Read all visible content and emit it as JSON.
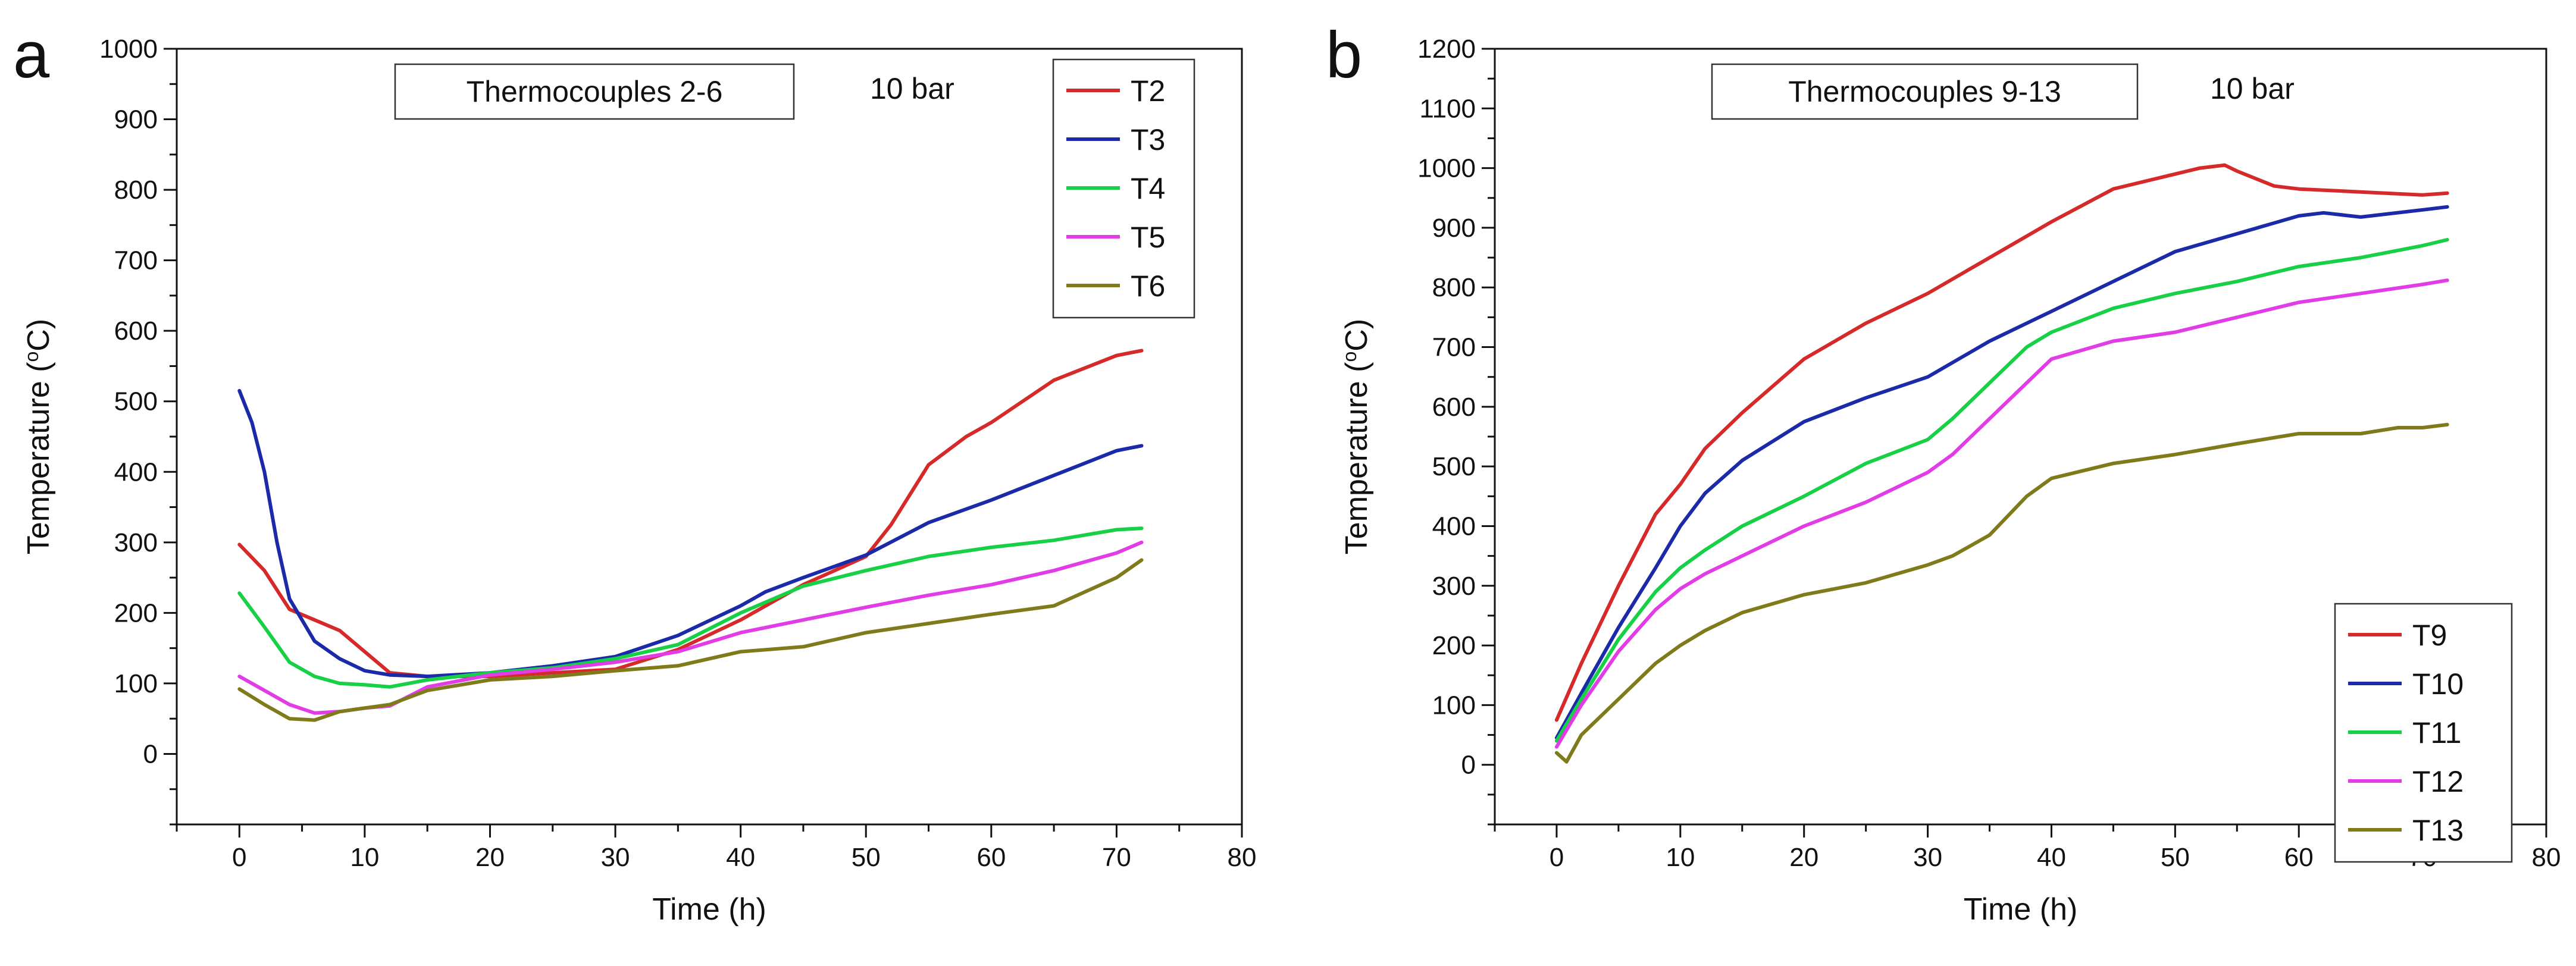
{
  "chart_data": [
    {
      "type": "line",
      "panel_label": "a",
      "title": "Thermocouples 2-6",
      "annotation": "10 bar",
      "xlabel": "Time (h)",
      "ylabel_prefix": "Temperature (",
      "ylabel_sup": "o",
      "ylabel_suffix": "C)",
      "xlim": [
        -5,
        80
      ],
      "ylim": [
        -100,
        1000
      ],
      "x_ticks": [
        0,
        10,
        20,
        30,
        40,
        50,
        60,
        70,
        80
      ],
      "y_ticks": [
        0,
        100,
        200,
        300,
        400,
        500,
        600,
        700,
        800,
        900,
        1000
      ],
      "legend_position": "top-right",
      "grid": false,
      "series": [
        {
          "name": "T2",
          "color": "#d62a2a",
          "x": [
            0,
            2,
            4,
            6,
            8,
            10,
            12,
            15,
            20,
            25,
            30,
            35,
            40,
            45,
            50,
            52,
            55,
            58,
            60,
            65,
            70,
            72
          ],
          "y": [
            297,
            260,
            205,
            190,
            175,
            145,
            115,
            110,
            110,
            115,
            120,
            148,
            190,
            240,
            280,
            325,
            410,
            450,
            470,
            530,
            565,
            572
          ]
        },
        {
          "name": "T3",
          "color": "#1a2aa8",
          "x": [
            0,
            1,
            2,
            3,
            4,
            6,
            8,
            10,
            12,
            15,
            20,
            25,
            30,
            35,
            40,
            42,
            45,
            50,
            55,
            60,
            65,
            70,
            72
          ],
          "y": [
            515,
            470,
            400,
            300,
            220,
            160,
            135,
            118,
            112,
            110,
            115,
            125,
            138,
            168,
            210,
            230,
            250,
            282,
            328,
            360,
            395,
            430,
            437
          ]
        },
        {
          "name": "T4",
          "color": "#18d045",
          "x": [
            0,
            2,
            4,
            6,
            8,
            10,
            12,
            15,
            20,
            25,
            30,
            35,
            40,
            45,
            50,
            55,
            60,
            65,
            70,
            72
          ],
          "y": [
            228,
            180,
            130,
            110,
            100,
            98,
            95,
            105,
            115,
            122,
            135,
            155,
            200,
            238,
            260,
            280,
            293,
            303,
            318,
            320
          ]
        },
        {
          "name": "T5",
          "color": "#e23ce6",
          "x": [
            0,
            2,
            4,
            6,
            8,
            10,
            12,
            15,
            20,
            25,
            30,
            35,
            40,
            45,
            50,
            55,
            60,
            65,
            70,
            72
          ],
          "y": [
            110,
            90,
            70,
            58,
            60,
            65,
            68,
            95,
            112,
            120,
            130,
            145,
            172,
            190,
            208,
            225,
            240,
            260,
            285,
            300
          ]
        },
        {
          "name": "T6",
          "color": "#7f7a1a",
          "x": [
            0,
            2,
            4,
            6,
            8,
            10,
            12,
            15,
            20,
            25,
            30,
            35,
            40,
            45,
            50,
            55,
            60,
            65,
            70,
            72
          ],
          "y": [
            92,
            70,
            50,
            48,
            60,
            65,
            70,
            90,
            105,
            110,
            118,
            125,
            145,
            152,
            172,
            185,
            198,
            210,
            250,
            275
          ]
        }
      ]
    },
    {
      "type": "line",
      "panel_label": "b",
      "title": "Thermocouples 9-13",
      "annotation": "10 bar",
      "xlabel": "Time (h)",
      "ylabel_prefix": "Temperature (",
      "ylabel_sup": "o",
      "ylabel_suffix": "C)",
      "xlim": [
        -5,
        80
      ],
      "ylim": [
        -100,
        1200
      ],
      "x_ticks": [
        0,
        10,
        20,
        30,
        40,
        50,
        60,
        70,
        80
      ],
      "y_ticks": [
        0,
        100,
        200,
        300,
        400,
        500,
        600,
        700,
        800,
        900,
        1000,
        1100,
        1200
      ],
      "legend_position": "bottom-right",
      "grid": false,
      "series": [
        {
          "name": "T9",
          "color": "#d62a2a",
          "x": [
            0,
            2,
            5,
            8,
            10,
            12,
            15,
            20,
            25,
            30,
            35,
            40,
            45,
            50,
            52,
            54,
            55,
            58,
            60,
            65,
            70,
            72
          ],
          "y": [
            75,
            170,
            300,
            420,
            470,
            530,
            590,
            680,
            740,
            790,
            850,
            910,
            965,
            990,
            1000,
            1005,
            995,
            970,
            965,
            960,
            955,
            958
          ]
        },
        {
          "name": "T10",
          "color": "#1a2aa8",
          "x": [
            0,
            2,
            5,
            8,
            10,
            12,
            15,
            20,
            25,
            30,
            35,
            40,
            45,
            50,
            55,
            60,
            62,
            65,
            70,
            72
          ],
          "y": [
            45,
            120,
            230,
            330,
            400,
            455,
            510,
            575,
            615,
            650,
            710,
            760,
            810,
            860,
            890,
            920,
            925,
            918,
            930,
            935
          ]
        },
        {
          "name": "T11",
          "color": "#18d045",
          "x": [
            0,
            2,
            5,
            8,
            10,
            12,
            15,
            20,
            25,
            30,
            32,
            35,
            38,
            40,
            45,
            50,
            55,
            60,
            65,
            70,
            72
          ],
          "y": [
            40,
            110,
            210,
            290,
            330,
            360,
            400,
            450,
            505,
            545,
            580,
            640,
            700,
            725,
            765,
            790,
            810,
            835,
            850,
            870,
            880
          ]
        },
        {
          "name": "T12",
          "color": "#e23ce6",
          "x": [
            0,
            2,
            5,
            8,
            10,
            12,
            15,
            20,
            25,
            30,
            32,
            35,
            38,
            40,
            45,
            50,
            55,
            60,
            65,
            70,
            72
          ],
          "y": [
            30,
            100,
            190,
            260,
            295,
            320,
            350,
            400,
            440,
            490,
            520,
            580,
            640,
            680,
            710,
            725,
            750,
            775,
            790,
            805,
            812
          ]
        },
        {
          "name": "T13",
          "color": "#7f7a1a",
          "x": [
            0,
            0.8,
            2,
            5,
            8,
            10,
            12,
            15,
            20,
            25,
            30,
            32,
            35,
            38,
            40,
            45,
            50,
            55,
            60,
            65,
            68,
            70,
            72
          ],
          "y": [
            20,
            5,
            50,
            110,
            170,
            200,
            225,
            255,
            285,
            305,
            335,
            350,
            385,
            450,
            480,
            505,
            520,
            538,
            555,
            555,
            565,
            565,
            570
          ]
        }
      ]
    }
  ]
}
